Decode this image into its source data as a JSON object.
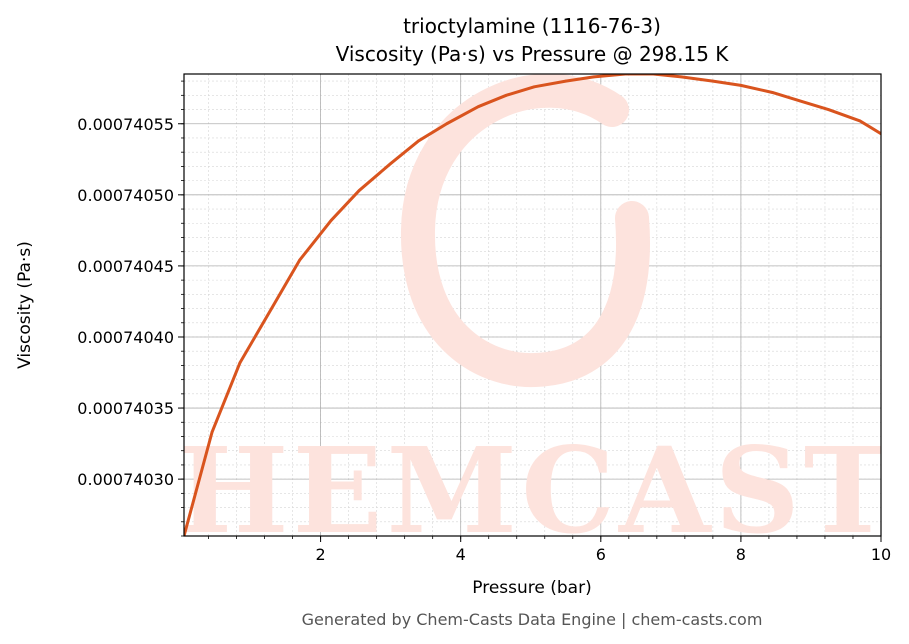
{
  "chart_data": {
    "type": "line",
    "title": "trioctylamine (1116-76-3)",
    "subtitle": "Viscosity (Pa·s) vs Pressure @ 298.15 K",
    "xlabel": "Pressure (bar)",
    "ylabel": "Viscosity (Pa·s)",
    "xlim": [
      0.05,
      10
    ],
    "ylim": [
      0.00074026,
      0.000740585
    ],
    "x_ticks": [
      2,
      4,
      6,
      8,
      10
    ],
    "x_tick_labels": [
      "2",
      "4",
      "6",
      "8",
      "10"
    ],
    "y_ticks": [
      0.0007403,
      0.00074035,
      0.0007404,
      0.00074045,
      0.0007405,
      0.00074055
    ],
    "y_tick_labels": [
      "0.00074030",
      "0.00074035",
      "0.00074040",
      "0.00074045",
      "0.00074050",
      "0.00074055"
    ],
    "grid": true,
    "line_color": "#d9541e",
    "series": [
      {
        "x": [
          0.05,
          0.45,
          0.85,
          1.3,
          1.7,
          2.15,
          2.55,
          3.0,
          3.4,
          3.8,
          4.25,
          4.65,
          5.05,
          5.5,
          5.9,
          6.35,
          6.75,
          7.15,
          7.6,
          8.0,
          8.45,
          8.85,
          9.25,
          9.7,
          10.0
        ],
        "y": [
          0.00074026,
          0.000740333,
          0.000740382,
          0.00074042,
          0.000740454,
          0.000740482,
          0.000740503,
          0.000740522,
          0.000740538,
          0.00074055,
          0.000740562,
          0.00074057,
          0.000740576,
          0.00074058,
          0.000740583,
          0.000740585,
          0.000740585,
          0.000740583,
          0.00074058,
          0.000740577,
          0.000740572,
          0.000740566,
          0.00074056,
          0.000740552,
          0.000740543
        ]
      }
    ]
  },
  "footer": "Generated by Chem-Casts Data Engine | chem-casts.com",
  "watermark": {
    "text": "CHEMCASTS",
    "color": "#fde3dd"
  }
}
